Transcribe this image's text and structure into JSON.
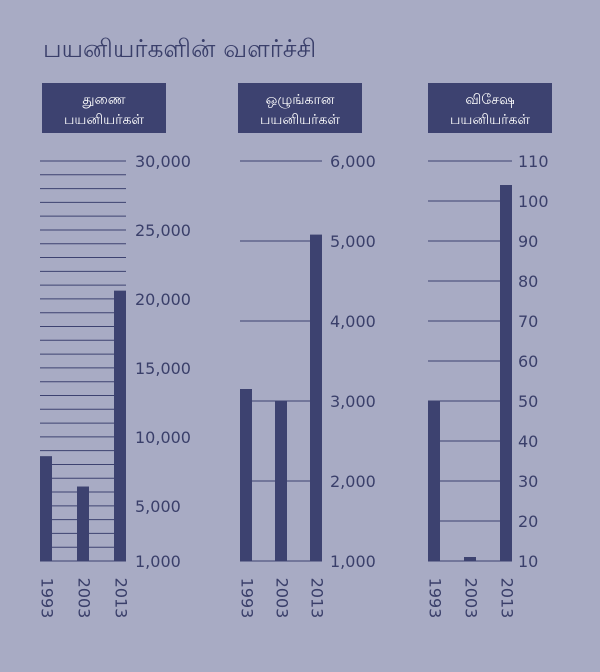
{
  "page": {
    "title": "பயனியர்களின் வளர்ச்சி"
  },
  "colors": {
    "background": "#a8abc4",
    "bar": "#3d4270",
    "header_bg": "#3d4270",
    "header_text": "#ffffff",
    "grid": "#3d4270",
    "text": "#3a3f6a"
  },
  "chart_data": [
    {
      "type": "bar",
      "title_lines": [
        "துணை",
        "பயனியர்கள்"
      ],
      "categories": [
        "1993",
        "2003",
        "2013"
      ],
      "values": [
        8600,
        6400,
        20600
      ],
      "ylim": [
        1000,
        30000
      ],
      "ytick_labels": [
        "30,000",
        "25,000",
        "20,000",
        "15,000",
        "10,000",
        "5,000",
        "1,000"
      ],
      "ytick_values": [
        30000,
        25000,
        20000,
        15000,
        10000,
        5000,
        1000
      ],
      "grid_step": 1000,
      "grid": true
    },
    {
      "type": "bar",
      "title_lines": [
        "ஒழுங்கான",
        "பயனியர்கள்"
      ],
      "categories": [
        "1993",
        "2003",
        "2013"
      ],
      "values": [
        3150,
        3000,
        5080
      ],
      "ylim": [
        1000,
        6000
      ],
      "ytick_labels": [
        "6,000",
        "5,000",
        "4,000",
        "3,000",
        "2,000",
        "1,000"
      ],
      "ytick_values": [
        6000,
        5000,
        4000,
        3000,
        2000,
        1000
      ],
      "grid_step": 1000,
      "grid": true
    },
    {
      "type": "bar",
      "title_lines": [
        "விசேஷ",
        "பயனியர்கள்"
      ],
      "categories": [
        "1993",
        "2003",
        "2013"
      ],
      "values": [
        50,
        11,
        104
      ],
      "ylim": [
        10,
        110
      ],
      "ytick_labels": [
        "110",
        "100",
        "90",
        "80",
        "70",
        "60",
        "50",
        "40",
        "30",
        "20",
        "10"
      ],
      "ytick_values": [
        110,
        100,
        90,
        80,
        70,
        60,
        50,
        40,
        30,
        20,
        10
      ],
      "grid_step": 10,
      "grid": true
    }
  ]
}
